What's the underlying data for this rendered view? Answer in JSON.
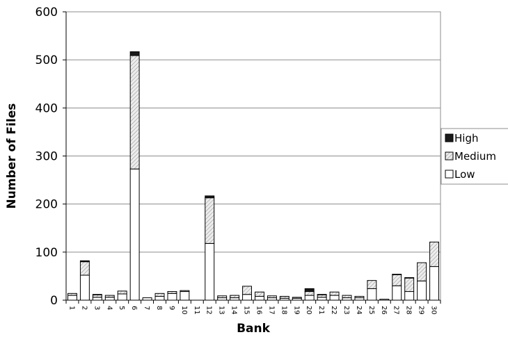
{
  "chart_data": {
    "type": "bar",
    "stacked": true,
    "title": "",
    "xlabel": "Bank",
    "ylabel": "Number of Files",
    "ylim": [
      0,
      600
    ],
    "yticks": [
      0,
      100,
      200,
      300,
      400,
      500,
      600
    ],
    "grid": "horizontal",
    "legend_position": "right",
    "categories": [
      "1",
      "2",
      "3",
      "4",
      "5",
      "6",
      "7",
      "8",
      "9",
      "10",
      "11",
      "12",
      "13",
      "14",
      "15",
      "16",
      "17",
      "18",
      "19",
      "20",
      "21",
      "22",
      "23",
      "24",
      "25",
      "26",
      "27",
      "28",
      "29",
      "30"
    ],
    "series": [
      {
        "name": "Low",
        "color": "#ffffff",
        "pattern": "none",
        "values": [
          10,
          52,
          6,
          6,
          13,
          273,
          5,
          8,
          14,
          18,
          0,
          118,
          5,
          5,
          12,
          8,
          5,
          4,
          4,
          10,
          6,
          10,
          5,
          5,
          24,
          2,
          30,
          18,
          40,
          70
        ]
      },
      {
        "name": "Medium",
        "color": "#cccccc",
        "pattern": "hatch",
        "values": [
          4,
          28,
          5,
          4,
          6,
          236,
          0,
          6,
          4,
          2,
          0,
          95,
          4,
          5,
          17,
          9,
          4,
          4,
          2,
          8,
          5,
          7,
          5,
          3,
          17,
          0,
          23,
          28,
          38,
          51
        ]
      },
      {
        "name": "High",
        "color": "#1a1a1a",
        "pattern": "none",
        "values": [
          0,
          2,
          1,
          0,
          0,
          8,
          0,
          0,
          0,
          0,
          0,
          4,
          0,
          0,
          0,
          0,
          0,
          0,
          0,
          6,
          1,
          0,
          0,
          0,
          0,
          0,
          1,
          1,
          0,
          0
        ]
      }
    ]
  }
}
